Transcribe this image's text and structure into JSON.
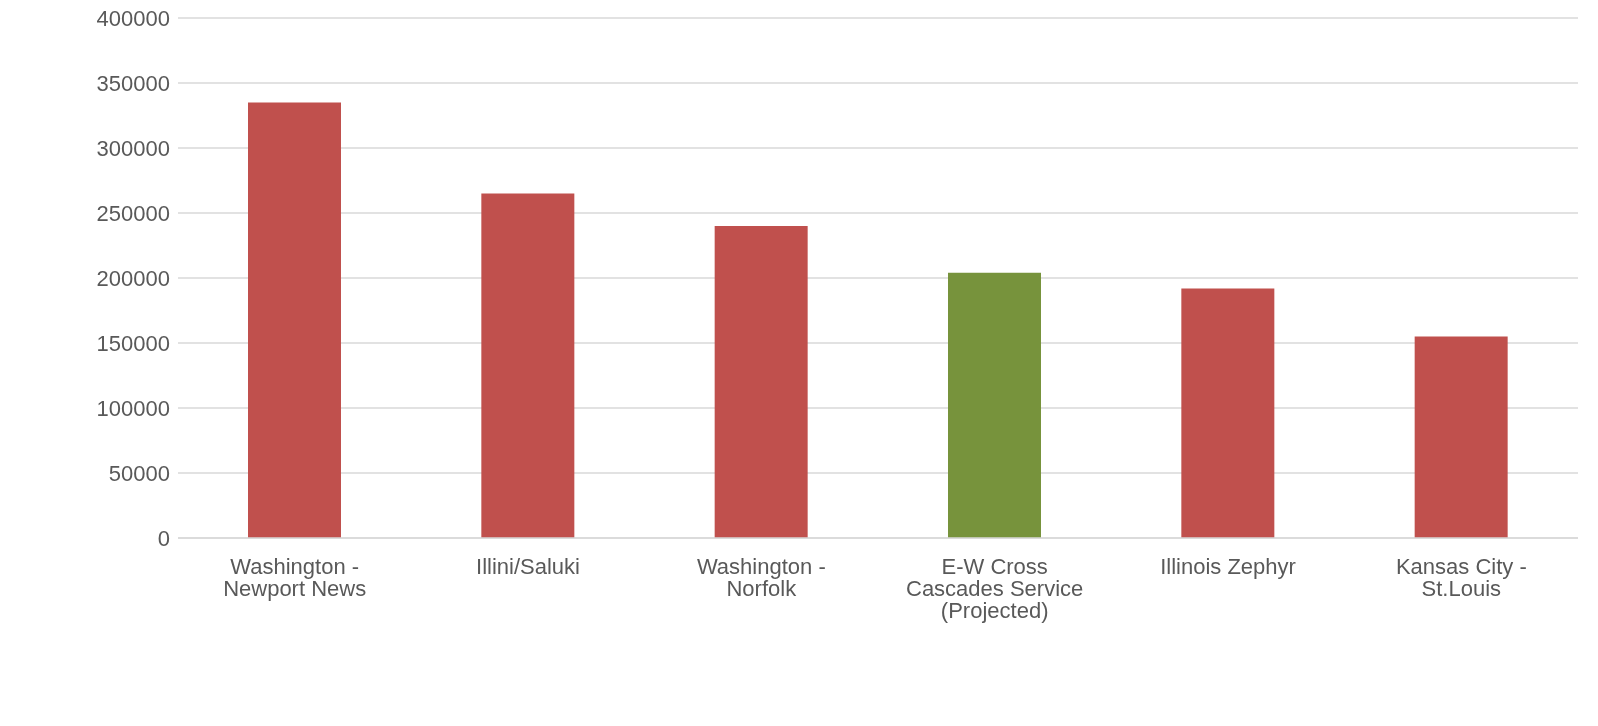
{
  "chart_data": {
    "type": "bar",
    "categories": [
      "Washington - Newport News",
      "Illini/Saluki",
      "Washington - Norfolk",
      "E-W Cross Cascades Service (Projected)",
      "Illinois Zephyr",
      "Kansas City - St.Louis"
    ],
    "values": [
      335000,
      265000,
      240000,
      204000,
      192000,
      155000
    ],
    "colors": [
      "#c0504d",
      "#c0504d",
      "#c0504d",
      "#77933c",
      "#c0504d",
      "#c0504d"
    ],
    "ylim": [
      0,
      400000
    ],
    "yticks": [
      0,
      50000,
      100000,
      150000,
      200000,
      250000,
      300000,
      350000,
      400000
    ],
    "grid": "y"
  }
}
